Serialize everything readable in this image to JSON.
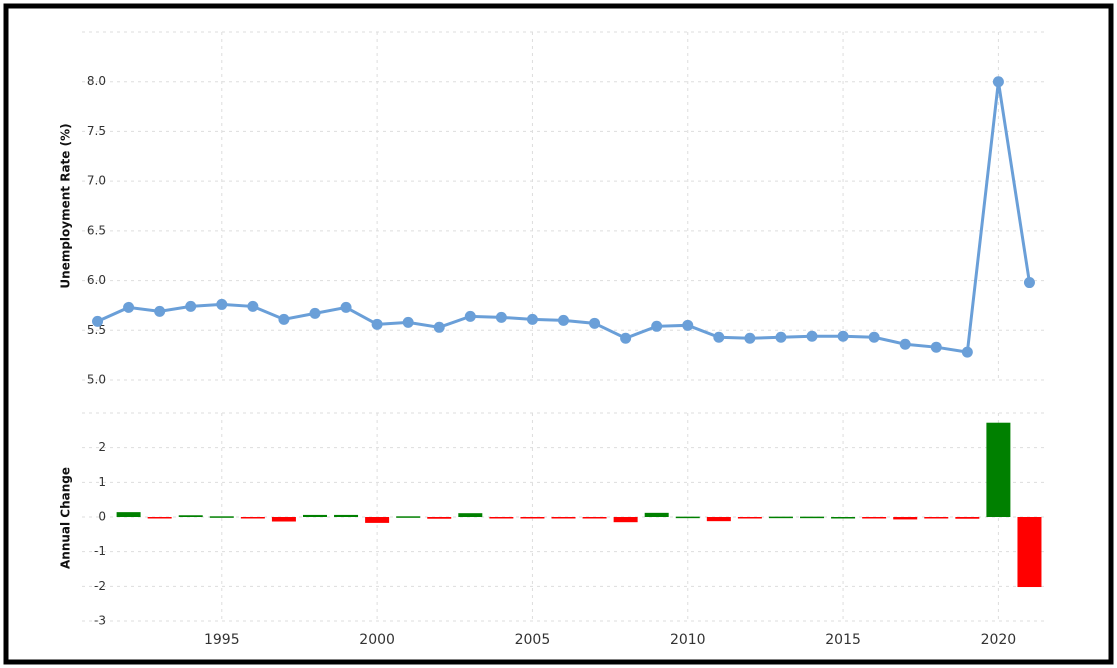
{
  "chart_data": [
    {
      "type": "line",
      "ylabel": "Unemployment Rate (%)",
      "x": [
        1991,
        1992,
        1993,
        1994,
        1995,
        1996,
        1997,
        1998,
        1999,
        2000,
        2001,
        2002,
        2003,
        2004,
        2005,
        2006,
        2007,
        2008,
        2009,
        2010,
        2011,
        2012,
        2013,
        2014,
        2015,
        2016,
        2017,
        2018,
        2019,
        2020,
        2021
      ],
      "series": [
        {
          "color": "#6a9fd8",
          "values": [
            5.59,
            5.73,
            5.69,
            5.74,
            5.76,
            5.74,
            5.61,
            5.67,
            5.73,
            5.56,
            5.58,
            5.53,
            5.64,
            5.63,
            5.61,
            5.6,
            5.57,
            5.42,
            5.54,
            5.55,
            5.43,
            5.42,
            5.43,
            5.44,
            5.44,
            5.43,
            5.36,
            5.33,
            5.28,
            8.0,
            5.98
          ]
        }
      ],
      "xlim": [
        1990.5,
        2021.5
      ],
      "ylim": [
        5.0,
        8.5
      ],
      "yticks": [
        {
          "value": 5,
          "label": "5.0"
        },
        {
          "value": 5.5,
          "label": "5.5"
        },
        {
          "value": 6,
          "label": "6.0"
        },
        {
          "value": 6.5,
          "label": "6.5"
        },
        {
          "value": 7,
          "label": "7.0"
        },
        {
          "value": 7.5,
          "label": "7.5"
        },
        {
          "value": 8,
          "label": "8.0"
        }
      ],
      "grid": true
    },
    {
      "type": "bar",
      "ylabel": "Annual Change",
      "x": [
        1992,
        1993,
        1994,
        1995,
        1996,
        1997,
        1998,
        1999,
        2000,
        2001,
        2002,
        2003,
        2004,
        2005,
        2006,
        2007,
        2008,
        2009,
        2010,
        2011,
        2012,
        2013,
        2014,
        2015,
        2016,
        2017,
        2018,
        2019,
        2020,
        2021
      ],
      "values": [
        0.14,
        -0.04,
        0.05,
        0.02,
        -0.02,
        -0.13,
        0.06,
        0.06,
        -0.17,
        0.02,
        -0.05,
        0.11,
        -0.01,
        -0.02,
        -0.01,
        -0.03,
        -0.15,
        0.12,
        0.01,
        -0.12,
        -0.01,
        0.01,
        0.01,
        0.0,
        -0.01,
        -0.07,
        -0.03,
        -0.05,
        2.72,
        -2.02
      ],
      "positive_color": "#008000",
      "negative_color": "#ff0000",
      "xlim": [
        1990.5,
        2021.5
      ],
      "xticks": [
        1995,
        2000,
        2005,
        2010,
        2015,
        2020
      ],
      "ylim": [
        -3,
        3
      ],
      "yticks": [
        -3,
        -2,
        -1,
        0,
        1,
        2
      ],
      "grid": true
    }
  ]
}
